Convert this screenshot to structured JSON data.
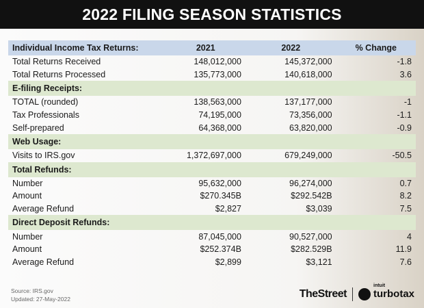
{
  "title": "2022 FILING SEASON STATISTICS",
  "table": {
    "header": [
      "Individual Income Tax Returns:",
      "2021",
      "2022",
      "% Change"
    ],
    "rows": [
      [
        "Total Returns Received",
        "148,012,000",
        "145,372,000",
        "-1.8"
      ],
      [
        "Total Returns Processed",
        "135,773,000",
        "140,618,000",
        "3.6"
      ]
    ],
    "sections": [
      {
        "title": "E-filing Receipts:",
        "rows": [
          [
            "TOTAL (rounded)",
            "138,563,000",
            "137,177,000",
            "-1"
          ],
          [
            "Tax Professionals",
            "74,195,000",
            "73,356,000",
            "-1.1"
          ],
          [
            "Self-prepared",
            "64,368,000",
            "63,820,000",
            "-0.9"
          ]
        ]
      },
      {
        "title": "Web Usage:",
        "rows": [
          [
            "Visits to IRS.gov",
            "1,372,697,000",
            "679,249,000",
            "-50.5"
          ]
        ]
      },
      {
        "title": "Total Refunds:",
        "rows": [
          [
            "Number",
            "95,632,000",
            "96,274,000",
            "0.7"
          ],
          [
            "Amount",
            "$270.345B",
            "$292.542B",
            "8.2"
          ],
          [
            "Average Refund",
            "$2,827",
            "$3,039",
            "7.5"
          ]
        ]
      },
      {
        "title": "Direct Deposit Refunds:",
        "rows": [
          [
            "Number",
            "87,045,000",
            "90,527,000",
            "4"
          ],
          [
            "Amount",
            "$252.374B",
            "$282.529B",
            "11.9"
          ],
          [
            "Average Refund",
            "$2,899",
            "$3,121",
            "7.6"
          ]
        ]
      }
    ]
  },
  "footer": {
    "source": "Source: IRS.gov",
    "updated": "Updated: 27-May-2022",
    "thestreet": "TheStreet",
    "intuit": "intuit",
    "turbotax": "turbotax"
  }
}
